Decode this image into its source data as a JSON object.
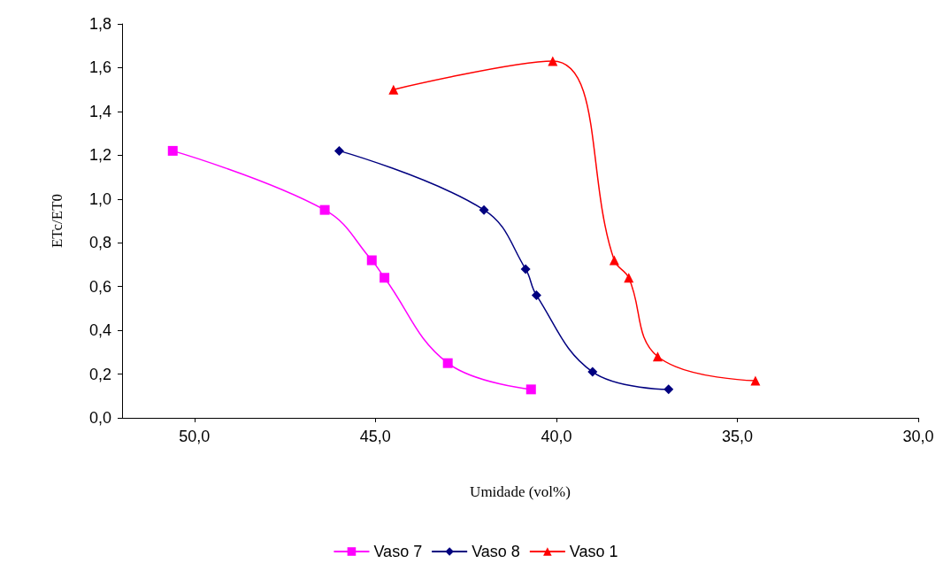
{
  "chart_data": {
    "type": "line",
    "xlabel": "Umidade (vol%)",
    "ylabel": "ETc/ET0",
    "xlim": [
      52,
      30
    ],
    "xticks": [
      {
        "value": 50,
        "label": "50,0"
      },
      {
        "value": 45,
        "label": "45,0"
      },
      {
        "value": 40,
        "label": "40,0"
      },
      {
        "value": 35,
        "label": "35,0"
      },
      {
        "value": 30,
        "label": "30,0"
      }
    ],
    "ylim": [
      0,
      1.8
    ],
    "yticks": [
      {
        "value": 0,
        "label": "0,0"
      },
      {
        "value": 0.2,
        "label": "0,2"
      },
      {
        "value": 0.4,
        "label": "0,4"
      },
      {
        "value": 0.6,
        "label": "0,6"
      },
      {
        "value": 0.8,
        "label": "0,8"
      },
      {
        "value": 1.0,
        "label": "1,0"
      },
      {
        "value": 1.2,
        "label": "1,2"
      },
      {
        "value": 1.4,
        "label": "1,4"
      },
      {
        "value": 1.6,
        "label": "1,6"
      },
      {
        "value": 1.8,
        "label": "1,8"
      }
    ],
    "grid": false,
    "legend": "bottom",
    "line_style": "solid",
    "series": [
      {
        "name": "Vaso 7",
        "color": "#ff00ff",
        "marker": "square",
        "x": [
          50.6,
          46.4,
          45.1,
          44.75,
          43.0,
          40.7
        ],
        "values": [
          1.22,
          0.95,
          0.72,
          0.64,
          0.25,
          0.13
        ]
      },
      {
        "name": "Vaso 8",
        "color": "#000080",
        "marker": "diamond",
        "x": [
          46.0,
          42.0,
          40.85,
          40.55,
          39.0,
          36.9
        ],
        "values": [
          1.22,
          0.95,
          0.68,
          0.56,
          0.21,
          0.13
        ]
      },
      {
        "name": "Vaso 1",
        "color": "#ff0000",
        "marker": "triangle",
        "x": [
          44.5,
          40.1,
          38.4,
          38.0,
          37.2,
          34.5
        ],
        "values": [
          1.5,
          1.63,
          0.72,
          0.64,
          0.28,
          0.17
        ]
      }
    ]
  }
}
